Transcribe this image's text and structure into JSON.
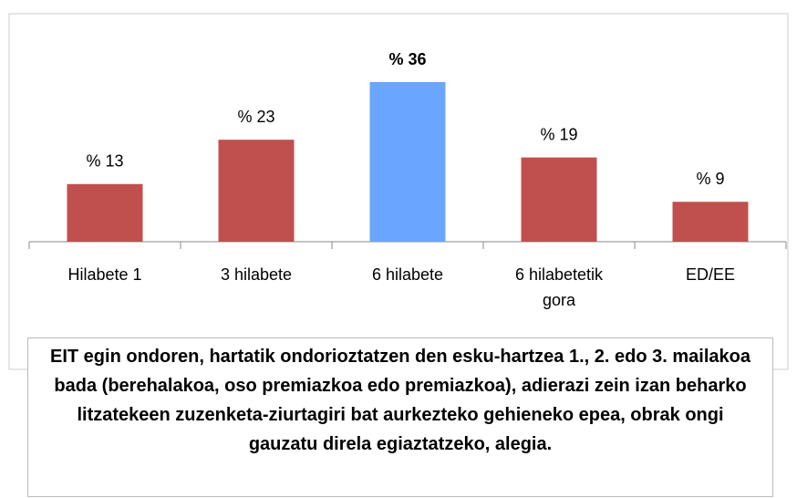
{
  "chart_data": {
    "type": "bar",
    "title": "EIT egin ondoren, hartatik ondorioztatzen den esku-hartzea 1., 2. edo 3. mailakoa bada (berehalakoa, oso premiazkoa edo premiazkoa), adierazi zein izan beharko litzatekeen zuzenketa-ziurtagiri bat aurkezteko gehieneko epea, obrak ongi gauzatu direla egiaztatzeko, alegia.",
    "categories": [
      "Hilabete 1",
      "3 hilabete",
      "6 hilabete",
      "6 hilabetetik gora",
      "ED/EE"
    ],
    "values": [
      13,
      23,
      36,
      19,
      9
    ],
    "value_labels": [
      "% 13",
      "% 23",
      "% 36",
      "% 19",
      "% 9"
    ],
    "colors": [
      "#c0504d",
      "#c0504d",
      "#6aa6ff",
      "#c0504d",
      "#c0504d"
    ],
    "highlight": 2
  }
}
